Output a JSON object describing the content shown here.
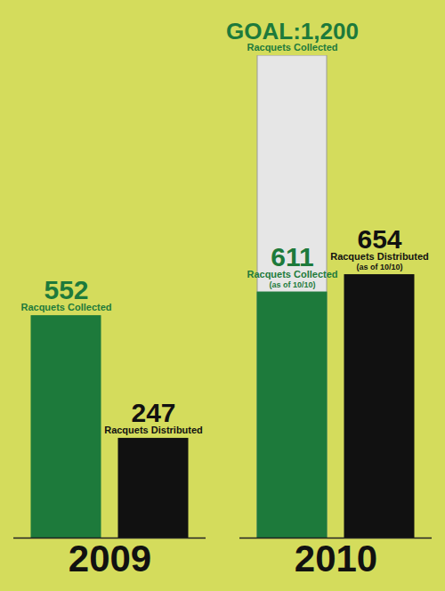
{
  "chart_data": {
    "type": "bar",
    "categories": [
      "2009",
      "2010"
    ],
    "series": [
      {
        "name": "Racquets Collected",
        "color": "#1d7a3b",
        "values": [
          552,
          611
        ]
      },
      {
        "name": "Racquets Distributed",
        "color": "#111111",
        "values": [
          247,
          654
        ]
      }
    ],
    "goal": {
      "category": "2010",
      "series": "Racquets Collected",
      "value": 1200,
      "label": "GOAL:1,200",
      "color": "#e6e6e6"
    },
    "annotations": [
      {
        "category": "2010",
        "series": "Racquets Collected",
        "text": "(as of 10/10)"
      },
      {
        "category": "2010",
        "series": "Racquets Distributed",
        "text": "(as of 10/10)"
      }
    ],
    "ylim": [
      0,
      1200
    ],
    "yticks": [],
    "data_labels": true,
    "tick_labels": "x"
  }
}
